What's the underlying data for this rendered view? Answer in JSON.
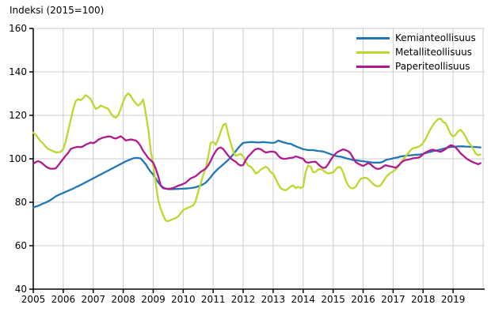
{
  "chart_data": {
    "type": "line",
    "title": "Indeksi (2015=100)",
    "xlabel": "",
    "ylabel": "",
    "ylim": [
      40,
      160
    ],
    "y_ticks": [
      40,
      60,
      80,
      100,
      120,
      140,
      160
    ],
    "x_tick_labels": [
      "2005",
      "2006",
      "2007",
      "2008",
      "2009",
      "2010",
      "2011",
      "2012",
      "2013",
      "2014",
      "2015",
      "2016",
      "2017",
      "2018",
      "2019"
    ],
    "x_resolution": "monthly",
    "grid": true,
    "legend_position": "top-right-inside",
    "axis_color": "#000000",
    "grid_color": "#cccccc",
    "background": "#ffffff",
    "series": [
      {
        "name": "Kemianteollisuus",
        "color": "#1f77b4",
        "values": [
          77.6,
          78.0,
          78.4,
          78.9,
          79.4,
          79.9,
          80.4,
          81.1,
          81.9,
          82.7,
          83.3,
          83.8,
          84.3,
          84.8,
          85.3,
          85.8,
          86.3,
          86.9,
          87.4,
          88.0,
          88.6,
          89.2,
          89.8,
          90.4,
          91.0,
          91.6,
          92.2,
          92.8,
          93.4,
          94.0,
          94.6,
          95.2,
          95.8,
          96.4,
          97.0,
          97.6,
          98.2,
          98.8,
          99.3,
          99.8,
          100.2,
          100.4,
          100.4,
          100.1,
          98.9,
          97.5,
          95.6,
          94.0,
          92.7,
          91.0,
          89.1,
          87.8,
          86.8,
          86.3,
          86.0,
          86.0,
          86.0,
          86.1,
          86.1,
          86.2,
          86.2,
          86.3,
          86.4,
          86.5,
          86.7,
          86.9,
          87.3,
          87.7,
          88.3,
          89.0,
          90.2,
          91.5,
          93.1,
          94.3,
          95.4,
          96.4,
          97.4,
          98.4,
          99.4,
          100.6,
          102.0,
          103.5,
          105.0,
          106.2,
          107.3,
          107.5,
          107.6,
          107.7,
          107.7,
          107.6,
          107.5,
          107.6,
          107.7,
          107.6,
          107.5,
          107.4,
          107.3,
          107.6,
          108.4,
          108.0,
          107.6,
          107.3,
          107.0,
          106.9,
          106.3,
          105.8,
          105.3,
          104.9,
          104.4,
          104.2,
          104.0,
          104.0,
          104.0,
          103.8,
          103.6,
          103.5,
          103.3,
          103.0,
          102.5,
          102.1,
          101.8,
          101.3,
          101.1,
          101.0,
          100.7,
          100.3,
          100.0,
          99.8,
          99.4,
          99.3,
          99.2,
          99.0,
          98.9,
          98.7,
          98.6,
          98.4,
          98.2,
          98.2,
          98.2,
          98.3,
          98.7,
          99.4,
          99.7,
          99.9,
          100.2,
          100.5,
          100.7,
          101.1,
          101.2,
          101.4,
          101.5,
          101.6,
          101.7,
          101.9,
          101.9,
          102.0,
          102.3,
          102.6,
          103.0,
          103.2,
          103.5,
          103.8,
          104.0,
          104.3,
          104.6,
          104.9,
          105.2,
          105.4,
          105.5,
          105.6,
          105.7,
          105.7,
          105.7,
          105.6,
          105.6,
          105.5,
          105.5,
          105.4,
          105.3,
          105.2
        ]
      },
      {
        "name": "Metalliteollisuus",
        "color": "#bed62f",
        "values": [
          112.0,
          111.0,
          109.5,
          108.0,
          107.0,
          105.5,
          104.5,
          104.0,
          103.5,
          103.0,
          103.0,
          103.2,
          104.5,
          108.0,
          113.0,
          118.0,
          123.0,
          126.5,
          127.5,
          127.0,
          128.0,
          129.3,
          128.5,
          127.5,
          125.0,
          123.0,
          123.5,
          124.5,
          124.0,
          123.5,
          123.0,
          121.0,
          119.5,
          119.0,
          120.0,
          123.0,
          126.5,
          128.9,
          130.2,
          129.0,
          127.0,
          125.5,
          124.5,
          125.5,
          127.3,
          121.0,
          113.8,
          104.0,
          96.7,
          89.0,
          81.0,
          77.0,
          74.0,
          71.5,
          71.3,
          71.8,
          72.3,
          72.7,
          73.5,
          75.0,
          76.4,
          77.0,
          77.5,
          78.0,
          78.6,
          80.5,
          84.9,
          88.5,
          92.5,
          95.6,
          101.0,
          107.3,
          107.8,
          106.5,
          109.0,
          112.5,
          115.5,
          116.2,
          111.5,
          107.3,
          103.5,
          101.3,
          101.8,
          102.3,
          101.1,
          98.7,
          96.9,
          96.4,
          95.1,
          93.2,
          93.8,
          95.1,
          95.6,
          96.4,
          95.6,
          93.8,
          93.1,
          90.9,
          88.4,
          86.5,
          85.8,
          85.5,
          86.2,
          87.2,
          87.8,
          86.5,
          87.1,
          86.5,
          87.1,
          94.0,
          96.9,
          96.4,
          93.8,
          94.0,
          95.1,
          95.3,
          94.7,
          93.8,
          93.2,
          93.5,
          93.8,
          95.1,
          96.2,
          96.0,
          93.8,
          90.2,
          87.8,
          86.5,
          86.4,
          87.1,
          89.0,
          90.8,
          91.1,
          91.3,
          90.8,
          89.5,
          88.4,
          87.6,
          87.3,
          87.8,
          89.5,
          91.3,
          92.6,
          93.6,
          94.1,
          95.1,
          96.4,
          98.0,
          99.6,
          101.1,
          102.5,
          104.0,
          104.9,
          105.1,
          105.5,
          106.0,
          107.3,
          109.1,
          111.5,
          113.8,
          115.6,
          117.1,
          118.2,
          118.5,
          117.0,
          116.4,
          114.0,
          111.5,
          110.2,
          111.0,
          112.7,
          113.3,
          112.0,
          110.2,
          107.8,
          106.5,
          104.7,
          102.4,
          101.6,
          102.0
        ]
      },
      {
        "name": "Paperiteollisuus",
        "color": "#b01a8e",
        "values": [
          97.8,
          98.5,
          98.9,
          98.4,
          97.5,
          96.5,
          95.8,
          95.4,
          95.4,
          95.6,
          97.0,
          98.5,
          100.0,
          101.5,
          102.8,
          104.5,
          105.0,
          105.3,
          105.5,
          105.3,
          105.8,
          106.5,
          107.0,
          107.5,
          107.2,
          107.8,
          108.8,
          109.3,
          109.8,
          110.0,
          110.3,
          110.2,
          109.6,
          109.3,
          109.8,
          110.4,
          109.5,
          108.4,
          108.7,
          108.9,
          108.7,
          108.4,
          107.5,
          105.8,
          103.6,
          102.0,
          100.4,
          99.3,
          98.2,
          95.5,
          92.0,
          87.7,
          86.4,
          86.2,
          86.2,
          86.3,
          86.6,
          87.1,
          87.6,
          88.0,
          88.4,
          89.0,
          90.0,
          91.0,
          91.5,
          92.0,
          93.0,
          94.0,
          94.7,
          95.5,
          97.0,
          99.0,
          101.5,
          103.5,
          104.8,
          105.2,
          104.5,
          103.0,
          101.5,
          100.2,
          99.3,
          98.7,
          97.5,
          96.9,
          97.1,
          99.3,
          101.1,
          102.2,
          103.5,
          104.4,
          104.7,
          104.4,
          103.6,
          102.9,
          103.1,
          103.3,
          103.3,
          102.9,
          101.5,
          100.4,
          100.0,
          100.0,
          100.2,
          100.4,
          100.6,
          101.1,
          100.8,
          100.4,
          100.0,
          98.5,
          98.2,
          98.4,
          98.6,
          98.7,
          97.5,
          96.5,
          95.8,
          96.0,
          97.5,
          99.5,
          101.1,
          102.4,
          103.3,
          103.8,
          104.4,
          104.0,
          103.5,
          102.4,
          100.4,
          98.5,
          97.8,
          97.2,
          96.7,
          97.3,
          98.0,
          97.5,
          96.4,
          95.6,
          95.3,
          95.6,
          96.4,
          97.1,
          96.7,
          96.5,
          96.2,
          95.9,
          96.7,
          98.0,
          98.9,
          99.4,
          99.6,
          99.9,
          100.2,
          100.4,
          100.5,
          101.0,
          102.2,
          102.9,
          103.5,
          104.0,
          104.2,
          103.8,
          103.5,
          103.2,
          103.8,
          104.5,
          105.5,
          106.2,
          106.0,
          105.2,
          104.0,
          102.5,
          101.5,
          100.5,
          99.6,
          99.0,
          98.4,
          98.0,
          97.5,
          98.0
        ]
      }
    ]
  }
}
